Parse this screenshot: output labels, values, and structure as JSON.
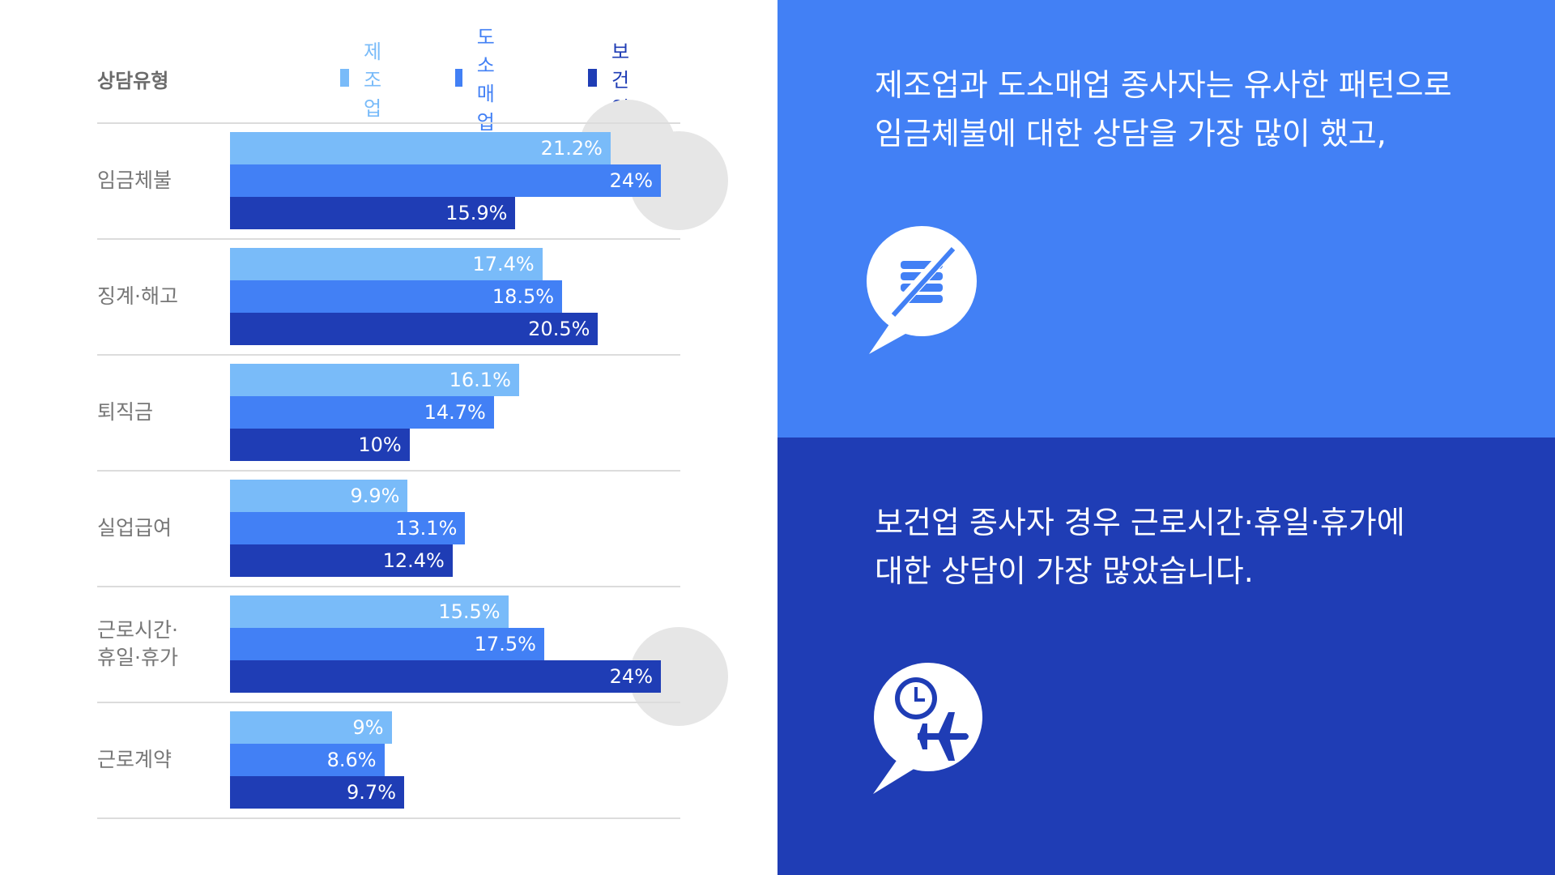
{
  "chart_data": {
    "type": "bar",
    "orientation": "horizontal",
    "header_label": "상담유형",
    "categories": [
      [
        "임금체불"
      ],
      [
        "징계·해고"
      ],
      [
        "퇴직금"
      ],
      [
        "실업급여"
      ],
      [
        "근로시간·",
        "휴일·휴가"
      ],
      [
        "근로계약"
      ]
    ],
    "series": [
      {
        "name": "제조업",
        "color": "#79bbf9",
        "values": [
          21.2,
          17.4,
          16.1,
          9.9,
          15.5,
          9.0
        ]
      },
      {
        "name": "도소매업",
        "color": "#4280f5",
        "values": [
          24.0,
          18.5,
          14.7,
          13.1,
          17.5,
          8.6
        ]
      },
      {
        "name": "보건업",
        "color": "#1f3db5",
        "values": [
          15.9,
          20.5,
          10.0,
          12.4,
          24.0,
          9.7
        ]
      }
    ],
    "value_labels": [
      [
        "21.2%",
        "17.4%",
        "16.1%",
        "9.9%",
        "15.5%",
        "9%"
      ],
      [
        "24%",
        "18.5%",
        "14.7%",
        "13.1%",
        "17.5%",
        "8.6%"
      ],
      [
        "15.9%",
        "20.5%",
        "10%",
        "12.4%",
        "24%",
        "9.7%"
      ]
    ],
    "unit": "%",
    "xlim": [
      0,
      24
    ],
    "highlighted": [
      {
        "category_index": 0,
        "series_index": 1
      },
      {
        "category_index": 4,
        "series_index": 2
      }
    ],
    "legend_position": "top-right",
    "grid": false
  },
  "messages": {
    "top": [
      "제조업과 도소매업 종사자는 유사한 패턴으로",
      "임금체불에 대한 상담을 가장 많이 했고,"
    ],
    "bottom": [
      "보건업 종사자 경우 근로시간·휴일·휴가에",
      "대한 상담이 가장 많았습니다."
    ]
  },
  "icons": {
    "top": "no-money-speech-bubble-icon",
    "bottom": "clock-airplane-speech-bubble-icon"
  },
  "colors": {
    "manufacturing": "#79bbf9",
    "retail": "#4280f5",
    "health": "#1f3db5",
    "panel_top": "#4280f5",
    "panel_bottom": "#1f3db5",
    "highlight": "#e6e6e6"
  }
}
